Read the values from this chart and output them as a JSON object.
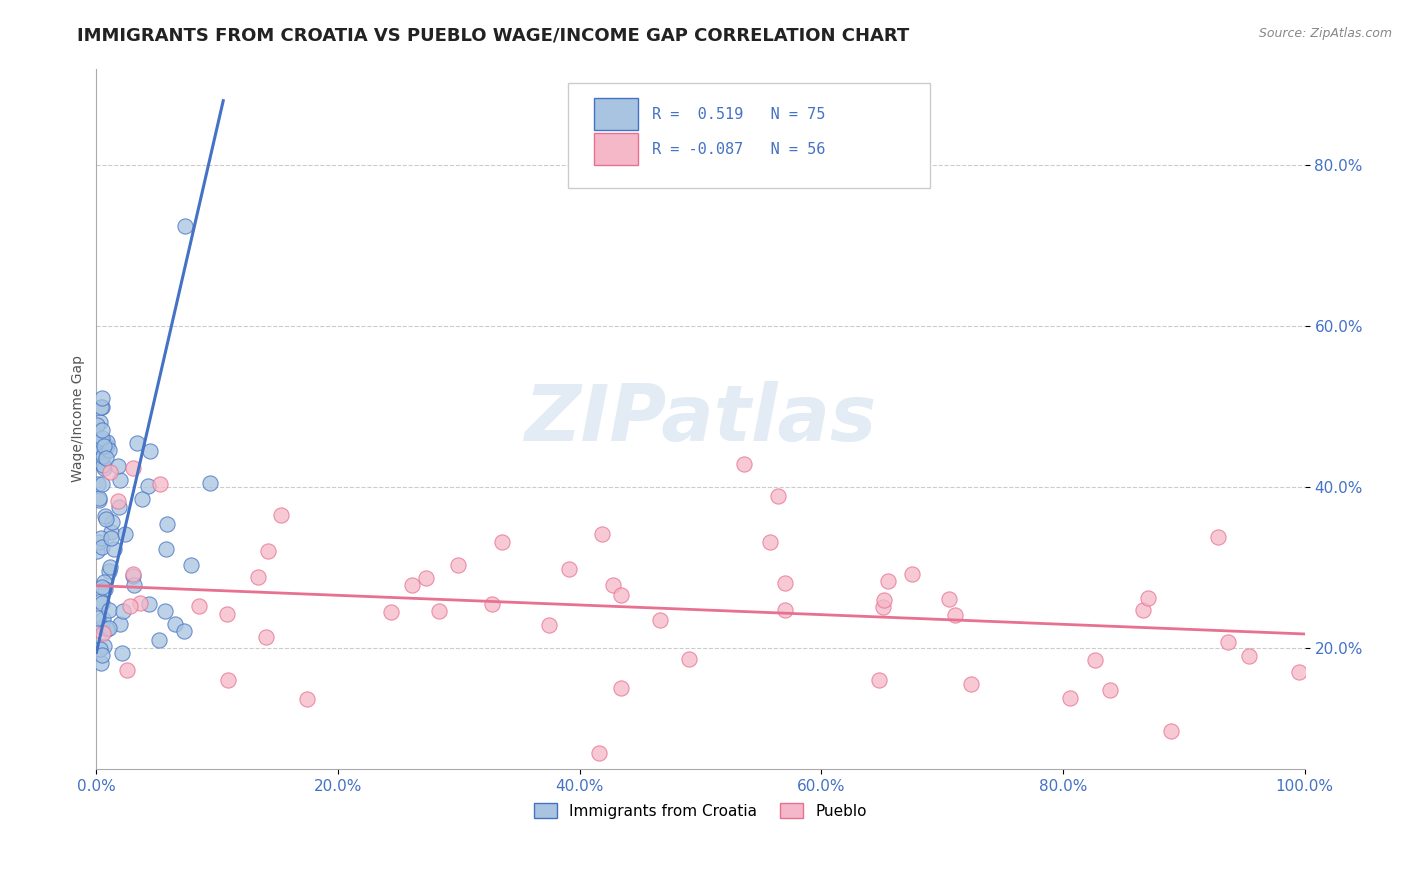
{
  "title": "IMMIGRANTS FROM CROATIA VS PUEBLO WAGE/INCOME GAP CORRELATION CHART",
  "source_text": "Source: ZipAtlas.com",
  "ylabel": "Wage/Income Gap",
  "watermark": "ZIPatlas",
  "blue_label": "R =  0.519   N = 75",
  "pink_label": "R = -0.087   N = 56",
  "bottom_legend_blue": "Immigrants from Croatia",
  "bottom_legend_pink": "Pueblo",
  "blue_trend_x": [
    0.0,
    0.105
  ],
  "blue_trend_y": [
    0.195,
    0.88
  ],
  "pink_trend_x": [
    0.0,
    1.0
  ],
  "pink_trend_y": [
    0.278,
    0.218
  ],
  "xlim": [
    0.0,
    1.0
  ],
  "ylim": [
    0.05,
    0.92
  ],
  "yticks": [
    0.2,
    0.4,
    0.6,
    0.8
  ],
  "ytick_labels": [
    "20.0%",
    "40.0%",
    "60.0%",
    "80.0%"
  ],
  "xticks": [
    0.0,
    0.2,
    0.4,
    0.6,
    0.8,
    1.0
  ],
  "xtick_labels": [
    "0.0%",
    "20.0%",
    "40.0%",
    "60.0%",
    "80.0%",
    "100.0%"
  ],
  "grid_color": "#cccccc",
  "blue_color": "#4472c4",
  "blue_fill": "#a8c4e0",
  "pink_color": "#e87090",
  "pink_fill": "#f4b8c8",
  "tick_label_color": "#4472c4",
  "bg_color": "#ffffff",
  "title_fontsize": 13,
  "axis_label_fontsize": 10,
  "tick_fontsize": 11
}
